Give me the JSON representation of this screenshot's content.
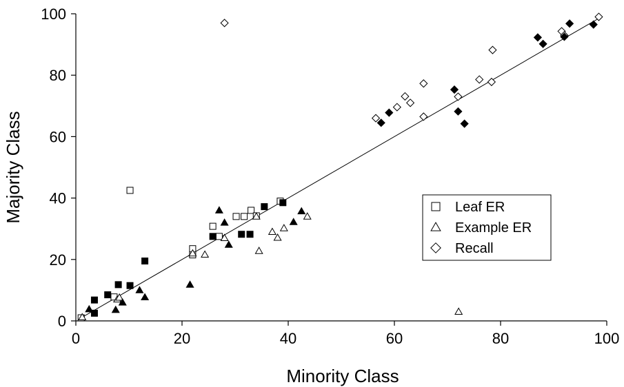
{
  "chart_data": {
    "type": "scatter",
    "title": "",
    "xlabel": "Minority Class",
    "ylabel": "Majority Class",
    "xlim": [
      0,
      100
    ],
    "ylim": [
      0,
      100
    ],
    "xticks": [
      "0",
      "20",
      "40",
      "60",
      "80",
      "100"
    ],
    "yticks": [
      "0",
      "20",
      "40",
      "60",
      "80",
      "100"
    ],
    "grid": false,
    "legend_position": "center-right",
    "reference_line": {
      "from": [
        1,
        1
      ],
      "to": [
        99,
        99
      ]
    },
    "series": [
      {
        "name": "Leaf ER",
        "marker": "square",
        "points_open": [
          [
            1,
            1
          ],
          [
            7.2,
            7.8
          ],
          [
            10.2,
            42.5
          ],
          [
            22,
            21.5
          ],
          [
            22,
            23.5
          ],
          [
            25.8,
            30.8
          ],
          [
            27,
            27.5
          ],
          [
            30.2,
            34
          ],
          [
            31.7,
            34
          ],
          [
            33,
            36
          ],
          [
            34,
            34.2
          ],
          [
            38.5,
            39
          ]
        ],
        "points_filled": [
          [
            3.5,
            2.5
          ],
          [
            3.5,
            6.8
          ],
          [
            6,
            8.5
          ],
          [
            8,
            11.8
          ],
          [
            10.2,
            11.5
          ],
          [
            13,
            19.5
          ],
          [
            25.8,
            27.5
          ],
          [
            31.2,
            28.2
          ],
          [
            32.8,
            28.2
          ],
          [
            35.5,
            37.2
          ],
          [
            39,
            38.5
          ]
        ]
      },
      {
        "name": "Example ER",
        "marker": "triangle",
        "points_open": [
          [
            1.2,
            1.2
          ],
          [
            7.8,
            7
          ],
          [
            8.2,
            7.6
          ],
          [
            22,
            22
          ],
          [
            24.3,
            21.6
          ],
          [
            28,
            27
          ],
          [
            34,
            34
          ],
          [
            34.5,
            22.8
          ],
          [
            37,
            29
          ],
          [
            38,
            27.1
          ],
          [
            39.2,
            30.2
          ],
          [
            43.6,
            34
          ],
          [
            72.1,
            3
          ]
        ],
        "points_filled": [
          [
            2.5,
            3.8
          ],
          [
            7.5,
            3.6
          ],
          [
            8.8,
            6
          ],
          [
            12,
            10
          ],
          [
            13,
            7.7
          ],
          [
            21.5,
            11.8
          ],
          [
            27,
            36
          ],
          [
            28,
            32
          ],
          [
            28.8,
            24.8
          ],
          [
            41,
            32.2
          ],
          [
            42.5,
            35.7
          ]
        ]
      },
      {
        "name": "Recall",
        "marker": "diamond",
        "points_open": [
          [
            28,
            97
          ],
          [
            56.5,
            66
          ],
          [
            60.5,
            69.6
          ],
          [
            62,
            73.1
          ],
          [
            63,
            71
          ],
          [
            65.5,
            66.5
          ],
          [
            65.5,
            77.3
          ],
          [
            72,
            73
          ],
          [
            76,
            78.6
          ],
          [
            78.3,
            77.8
          ],
          [
            78.5,
            88.2
          ],
          [
            91.5,
            94.3
          ],
          [
            92,
            93
          ],
          [
            98.5,
            99
          ]
        ],
        "points_filled": [
          [
            57.5,
            64.5
          ],
          [
            59,
            67.8
          ],
          [
            71.3,
            75.3
          ],
          [
            72,
            68.2
          ],
          [
            73.2,
            64.2
          ],
          [
            87,
            92.3
          ],
          [
            88,
            90.2
          ],
          [
            92,
            92.5
          ],
          [
            93,
            96.8
          ],
          [
            97.5,
            96.5
          ]
        ]
      }
    ]
  }
}
